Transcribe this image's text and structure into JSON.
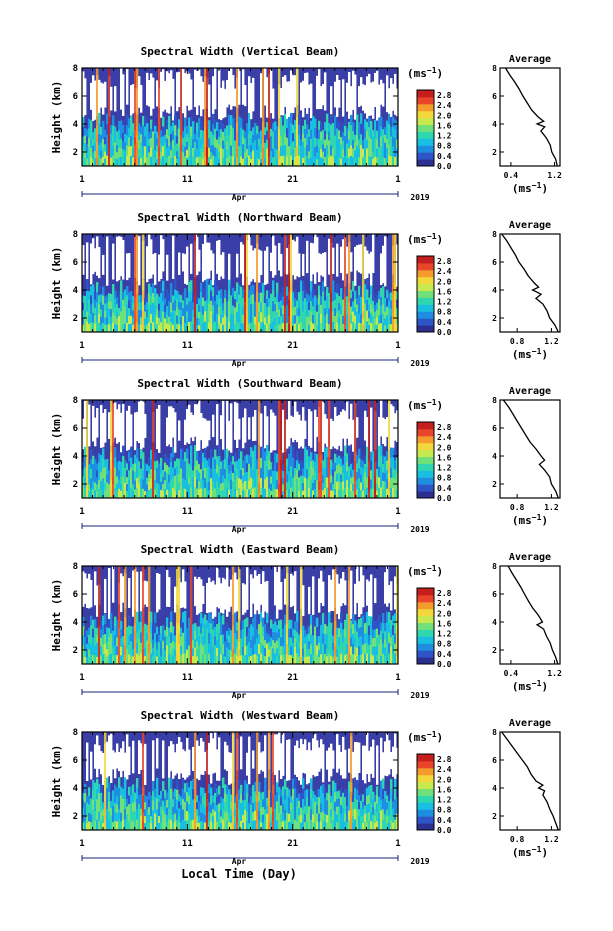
{
  "figure": {
    "xlabel": "Local Time (Day)",
    "month_label": "Apr",
    "year_label": "2019",
    "x_tick_labels": [
      "1",
      "11",
      "21",
      "1"
    ],
    "ylabel": "Height (km)",
    "colorbar_unit": "(ms",
    "colorbar_unit_exp": "−1",
    "colorbar_unit_close": ")",
    "avg_title": "Average",
    "avg_xlabel": "(ms",
    "avg_xlabel_exp": "−1",
    "avg_xlabel_close": ")"
  },
  "colors": {
    "background_blue": "#3a3fa8",
    "colormap": [
      "#2b2f8f",
      "#2e55c8",
      "#1f8ee0",
      "#18bfe0",
      "#2fd6b0",
      "#6fe07a",
      "#c8e850",
      "#f2d83a",
      "#f59a2c",
      "#e8452a",
      "#c41e1e"
    ]
  },
  "chart_data": [
    {
      "type": "heatmap",
      "title": "Spectral Width (Vertical Beam)",
      "x_range_days": [
        1,
        31
      ],
      "ylim_km": [
        1,
        8
      ],
      "y_ticks": [
        "2",
        "4",
        "6",
        "8"
      ],
      "colorbar_ticks": [
        "0.0",
        "0.4",
        "0.8",
        "1.2",
        "1.6",
        "2.0",
        "2.4",
        "2.8"
      ],
      "colorbar_range": [
        0,
        3.0
      ],
      "average_profile": {
        "title": "Average",
        "x_tick_labels": [
          "0.4",
          "1.2"
        ],
        "xlim": [
          0.2,
          1.3
        ],
        "height_km": [
          8.0,
          7.5,
          7.0,
          6.5,
          6.0,
          5.5,
          5.0,
          4.5,
          4.2,
          4.0,
          3.8,
          3.5,
          3.0,
          2.5,
          2.0,
          1.5,
          1.0
        ],
        "value_ms": [
          0.3,
          0.38,
          0.47,
          0.55,
          0.62,
          0.7,
          0.78,
          0.9,
          1.0,
          0.88,
          1.02,
          0.95,
          1.05,
          1.12,
          1.15,
          1.22,
          1.25
        ]
      }
    },
    {
      "type": "heatmap",
      "title": "Spectral Width (Northward Beam)",
      "x_range_days": [
        1,
        31
      ],
      "ylim_km": [
        1,
        8
      ],
      "y_ticks": [
        "2",
        "4",
        "6",
        "8"
      ],
      "colorbar_ticks": [
        "0.0",
        "0.4",
        "0.8",
        "1.2",
        "1.6",
        "2.0",
        "2.4",
        "2.8"
      ],
      "colorbar_range": [
        0,
        3.0
      ],
      "average_profile": {
        "title": "Average",
        "x_tick_labels": [
          "0.8",
          "1.2"
        ],
        "xlim": [
          0.6,
          1.3
        ],
        "height_km": [
          8.0,
          7.5,
          7.0,
          6.5,
          6.0,
          5.5,
          5.0,
          4.5,
          4.2,
          4.0,
          3.7,
          3.4,
          3.0,
          2.5,
          2.0,
          1.5,
          1.0
        ],
        "value_ms": [
          0.62,
          0.68,
          0.73,
          0.78,
          0.82,
          0.88,
          0.93,
          1.0,
          1.05,
          0.98,
          1.08,
          1.02,
          1.1,
          1.15,
          1.18,
          1.24,
          1.28
        ]
      }
    },
    {
      "type": "heatmap",
      "title": "Spectral Width (Southward Beam)",
      "x_range_days": [
        1,
        31
      ],
      "ylim_km": [
        1,
        8
      ],
      "y_ticks": [
        "2",
        "4",
        "6",
        "8"
      ],
      "colorbar_ticks": [
        "0.0",
        "0.4",
        "0.8",
        "1.2",
        "1.6",
        "2.0",
        "2.4",
        "2.8"
      ],
      "colorbar_range": [
        0,
        3.0
      ],
      "average_profile": {
        "title": "Average",
        "x_tick_labels": [
          "0.8",
          "1.2"
        ],
        "xlim": [
          0.6,
          1.3
        ],
        "height_km": [
          8.0,
          7.5,
          7.0,
          6.5,
          6.0,
          5.5,
          5.0,
          4.5,
          4.0,
          3.7,
          3.4,
          3.0,
          2.5,
          2.0,
          1.5,
          1.0
        ],
        "value_ms": [
          0.64,
          0.7,
          0.75,
          0.8,
          0.85,
          0.9,
          0.95,
          1.02,
          1.08,
          1.12,
          1.06,
          1.12,
          1.18,
          1.2,
          1.25,
          1.28
        ]
      }
    },
    {
      "type": "heatmap",
      "title": "Spectral Width (Eastward Beam)",
      "x_range_days": [
        1,
        31
      ],
      "ylim_km": [
        1,
        8
      ],
      "y_ticks": [
        "2",
        "4",
        "6",
        "8"
      ],
      "colorbar_ticks": [
        "0.0",
        "0.4",
        "0.8",
        "1.2",
        "1.6",
        "2.0",
        "2.4",
        "2.8"
      ],
      "colorbar_range": [
        0,
        3.0
      ],
      "average_profile": {
        "title": "Average",
        "x_tick_labels": [
          "0.4",
          "1.2"
        ],
        "xlim": [
          0.2,
          1.3
        ],
        "height_km": [
          8.0,
          7.5,
          7.0,
          6.5,
          6.0,
          5.5,
          5.0,
          4.5,
          4.0,
          3.8,
          3.5,
          3.0,
          2.5,
          2.0,
          1.5,
          1.0
        ],
        "value_ms": [
          0.35,
          0.42,
          0.5,
          0.58,
          0.65,
          0.72,
          0.8,
          0.9,
          0.98,
          0.88,
          1.0,
          1.05,
          1.12,
          1.16,
          1.22,
          1.26
        ]
      }
    },
    {
      "type": "heatmap",
      "title": "Spectral Width (Westward Beam)",
      "x_range_days": [
        1,
        31
      ],
      "ylim_km": [
        1,
        8
      ],
      "y_ticks": [
        "2",
        "4",
        "6",
        "8"
      ],
      "colorbar_ticks": [
        "0.0",
        "0.4",
        "0.8",
        "1.2",
        "1.6",
        "2.0",
        "2.4",
        "2.8"
      ],
      "colorbar_range": [
        0,
        3.0
      ],
      "average_profile": {
        "title": "Average",
        "x_tick_labels": [
          "0.8",
          "1.2"
        ],
        "xlim": [
          0.6,
          1.3
        ],
        "height_km": [
          8.0,
          7.5,
          7.0,
          6.5,
          6.0,
          5.5,
          5.0,
          4.5,
          4.2,
          4.0,
          3.8,
          3.5,
          3.0,
          2.5,
          2.0,
          1.5,
          1.0
        ],
        "value_ms": [
          0.62,
          0.68,
          0.74,
          0.8,
          0.86,
          0.92,
          0.96,
          1.02,
          1.1,
          1.05,
          1.12,
          1.1,
          1.15,
          1.18,
          1.22,
          1.25,
          1.28
        ]
      }
    }
  ]
}
